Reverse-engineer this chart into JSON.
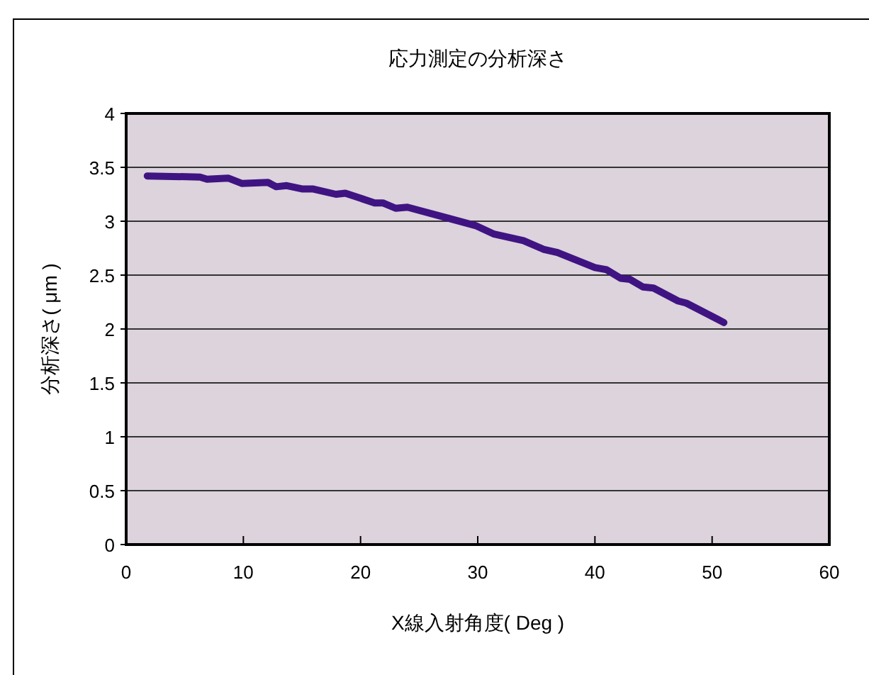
{
  "chart_data": {
    "type": "line",
    "title": "応力測定の分析深さ",
    "xlabel": "X線入射角度( Deg )",
    "ylabel": "分析深さ( μm )",
    "xlim": [
      0,
      60
    ],
    "xticks": [
      0,
      10,
      20,
      30,
      40,
      50,
      60
    ],
    "ylim": [
      0,
      4
    ],
    "yticks": [
      0,
      0.5,
      1,
      1.5,
      2,
      2.5,
      3,
      3.5,
      4
    ],
    "grid": "y",
    "marker": "none",
    "line_style": "solid",
    "series": [
      {
        "color": "#3f1482",
        "x": [
          1.8,
          6.3,
          6.9,
          8.7,
          9.9,
          12.1,
          12.8,
          13.7,
          15.0,
          15.9,
          17.9,
          18.7,
          21.2,
          21.9,
          23.0,
          24.0,
          27.4,
          29.8,
          31.4,
          33.9,
          35.6,
          36.8,
          40.0,
          41.0,
          42.2,
          43.0,
          44.1,
          45.0,
          47.1,
          47.8,
          51.0
        ],
        "values": [
          3.42,
          3.41,
          3.39,
          3.4,
          3.35,
          3.36,
          3.32,
          3.33,
          3.3,
          3.3,
          3.25,
          3.26,
          3.17,
          3.17,
          3.12,
          3.13,
          3.03,
          2.96,
          2.88,
          2.82,
          2.74,
          2.71,
          2.57,
          2.55,
          2.47,
          2.46,
          2.39,
          2.38,
          2.26,
          2.24,
          2.06
        ]
      }
    ]
  }
}
